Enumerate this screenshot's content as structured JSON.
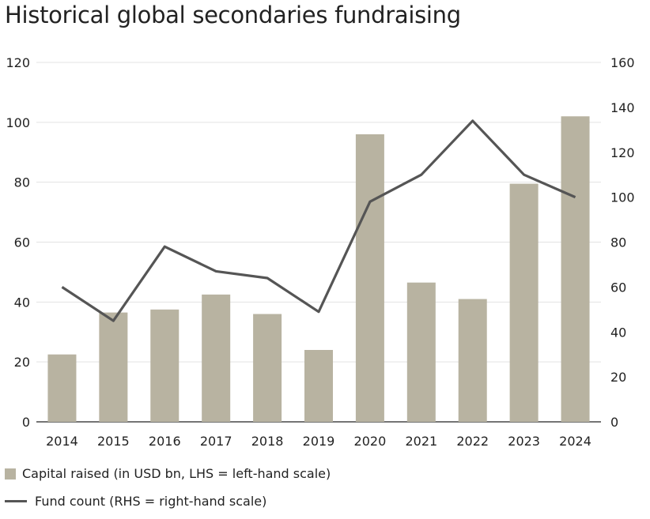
{
  "chart_data": {
    "type": "bar+line",
    "title": "Historical global secondaries fundraising",
    "categories": [
      "2014",
      "2015",
      "2016",
      "2017",
      "2018",
      "2019",
      "2020",
      "2021",
      "2022",
      "2023",
      "2024"
    ],
    "series": [
      {
        "name": "Capital raised (in USD bn, LHS = left-hand scale)",
        "type": "bar",
        "axis": "left",
        "color": "#b8b3a1",
        "values": [
          22.5,
          36.5,
          37.5,
          42.5,
          36,
          24,
          96,
          46.5,
          41,
          79.5,
          102
        ]
      },
      {
        "name": "Fund count (RHS = right-hand scale)",
        "type": "line",
        "axis": "right",
        "color": "#555555",
        "values": [
          60,
          45,
          78,
          67,
          64,
          49,
          98,
          110,
          134,
          110,
          100
        ]
      }
    ],
    "left_axis": {
      "ylim": [
        0,
        120
      ],
      "ticks": [
        "0",
        "20",
        "40",
        "60",
        "80",
        "100",
        "120"
      ]
    },
    "right_axis": {
      "ylim": [
        0,
        160
      ],
      "ticks": [
        "0",
        "20",
        "40",
        "60",
        "80",
        "100",
        "120",
        "140",
        "160"
      ]
    },
    "grid": true,
    "legend_position": "bottom-left"
  }
}
